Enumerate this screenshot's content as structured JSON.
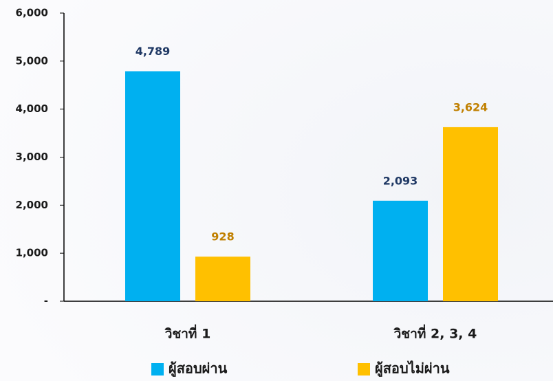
{
  "chart_data": {
    "type": "bar",
    "categories": [
      "วิชาที่ 1",
      "วิชาที่ 2, 3, 4"
    ],
    "series": [
      {
        "name": "ผู้สอบผ่าน",
        "color": "#00b0f0",
        "label_color": "#1f3864",
        "values": [
          4789,
          2093
        ],
        "value_labels": [
          "4,789",
          "2,093"
        ]
      },
      {
        "name": "ผู้สอบไม่ผ่าน",
        "color": "#ffc000",
        "label_color": "#c08000",
        "values": [
          928,
          3624
        ],
        "value_labels": [
          "928",
          "3,624"
        ]
      }
    ],
    "ylim": [
      0,
      6000
    ],
    "yticks": [
      {
        "value": 0,
        "label": "-"
      },
      {
        "value": 1000,
        "label": "1,000"
      },
      {
        "value": 2000,
        "label": "2,000"
      },
      {
        "value": 3000,
        "label": "3,000"
      },
      {
        "value": 4000,
        "label": "4,000"
      },
      {
        "value": 5000,
        "label": "5,000"
      },
      {
        "value": 6000,
        "label": "6,000"
      }
    ],
    "grid": false,
    "legend": "bottom"
  }
}
